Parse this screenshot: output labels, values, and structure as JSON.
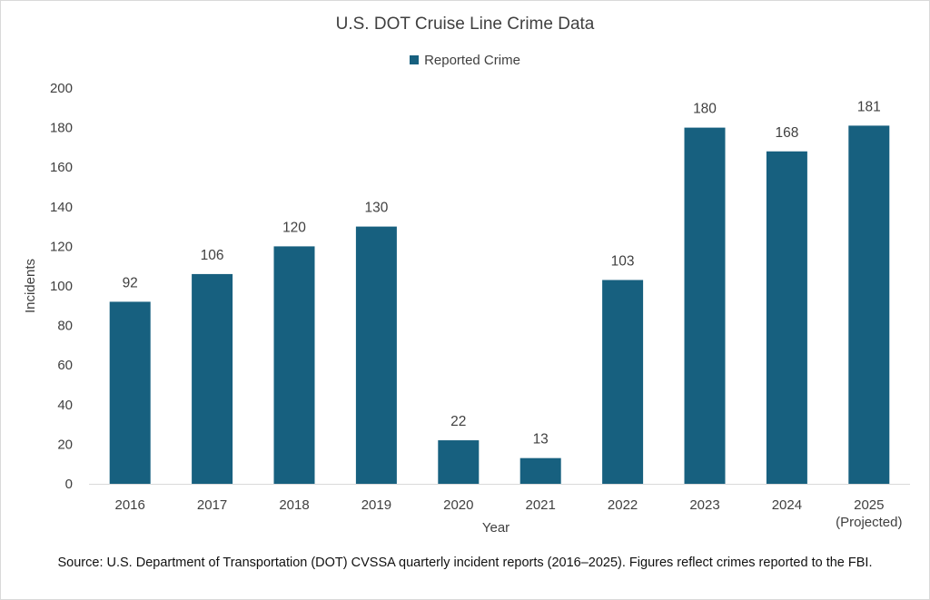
{
  "chart_data": {
    "type": "bar",
    "title": "U.S. DOT Cruise Line Crime Data",
    "xlabel": "Year",
    "ylabel": "Incidents",
    "ylim": [
      0,
      200
    ],
    "yticks": [
      0,
      20,
      40,
      60,
      80,
      100,
      120,
      140,
      160,
      180,
      200
    ],
    "grid": false,
    "legend": "top",
    "categories": [
      "2016",
      "2017",
      "2018",
      "2019",
      "2020",
      "2021",
      "2022",
      "2023",
      "2024",
      "2025\n(Projected)"
    ],
    "series": [
      {
        "name": "Reported Crime",
        "color": "#17607f",
        "values": [
          92,
          106,
          120,
          130,
          22,
          13,
          103,
          180,
          168,
          181
        ]
      }
    ],
    "data_labels": true
  },
  "footnote": "Source: U.S. Department of Transportation (DOT) CVSSA quarterly incident reports (2016–2025). Figures reflect crimes reported to the FBI."
}
